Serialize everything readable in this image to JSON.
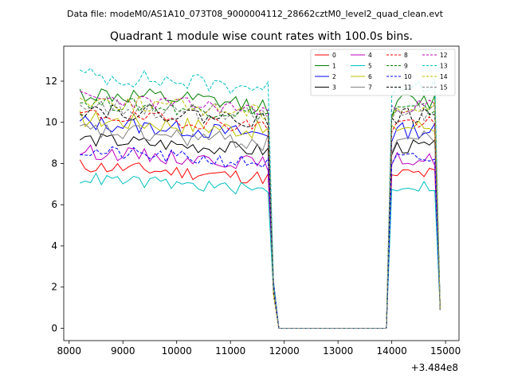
{
  "chart_data": {
    "type": "line",
    "suptitle": "Data file: modeM0/AS1A10_073T08_9000004112_28662cztM0_level2_quad_clean.evt",
    "title": "Quadrant 1 module wise count rates with 100.0s bins.",
    "xlabel": "",
    "ylabel": "",
    "x_offset_label": "+3.484e8",
    "xlim": [
      7900,
      15250
    ],
    "ylim": [
      -0.6,
      13.7
    ],
    "xticks": [
      8000,
      9000,
      10000,
      11000,
      12000,
      13000,
      14000,
      15000
    ],
    "yticks": [
      0,
      2,
      4,
      6,
      8,
      10,
      12
    ],
    "legend_position": "top-right",
    "series": [
      {
        "name": "0",
        "color": "#ff0000",
        "dash": "solid",
        "base": 7.5,
        "noise": 0.35,
        "seed": 11
      },
      {
        "name": "1",
        "color": "#008000",
        "dash": "solid",
        "base": 11.0,
        "noise": 0.45,
        "seed": 12
      },
      {
        "name": "2",
        "color": "#0000ff",
        "dash": "solid",
        "base": 9.6,
        "noise": 0.4,
        "seed": 13
      },
      {
        "name": "3",
        "color": "#000000",
        "dash": "solid",
        "base": 8.8,
        "noise": 0.35,
        "seed": 14
      },
      {
        "name": "4",
        "color": "#bf00bf",
        "dash": "solid",
        "base": 8.2,
        "noise": 0.35,
        "seed": 15
      },
      {
        "name": "5",
        "color": "#00bfbf",
        "dash": "solid",
        "base": 6.9,
        "noise": 0.3,
        "seed": 16
      },
      {
        "name": "6",
        "color": "#bfbf00",
        "dash": "solid",
        "base": 9.8,
        "noise": 0.45,
        "seed": 17
      },
      {
        "name": "7",
        "color": "#808080",
        "dash": "solid",
        "base": 9.2,
        "noise": 0.45,
        "seed": 18
      },
      {
        "name": "8",
        "color": "#ff0000",
        "dash": "dashed",
        "base": 10.0,
        "noise": 0.35,
        "seed": 19
      },
      {
        "name": "9",
        "color": "#008000",
        "dash": "dashed",
        "base": 10.6,
        "noise": 0.35,
        "seed": 20
      },
      {
        "name": "10",
        "color": "#0000ff",
        "dash": "dashed",
        "base": 8.2,
        "noise": 0.35,
        "seed": 21
      },
      {
        "name": "11",
        "color": "#000000",
        "dash": "dashed",
        "base": 10.3,
        "noise": 0.4,
        "seed": 22
      },
      {
        "name": "12",
        "color": "#bf00bf",
        "dash": "dashed",
        "base": 10.8,
        "noise": 0.35,
        "seed": 23
      },
      {
        "name": "13",
        "color": "#00bfbf",
        "dash": "dashed",
        "base": 11.9,
        "noise": 0.45,
        "seed": 24
      },
      {
        "name": "14",
        "color": "#bfbf00",
        "dash": "dashed",
        "base": 10.7,
        "noise": 0.4,
        "seed": 25
      },
      {
        "name": "15",
        "color": "#808080",
        "dash": "dashed",
        "base": 10.5,
        "noise": 0.45,
        "seed": 26
      }
    ],
    "segments": {
      "active1": [
        8200,
        11700
      ],
      "gap": [
        11900,
        13900
      ],
      "active2": [
        14000,
        14800
      ],
      "end_x": 14900,
      "end_value": 0.9,
      "step": 100
    }
  }
}
